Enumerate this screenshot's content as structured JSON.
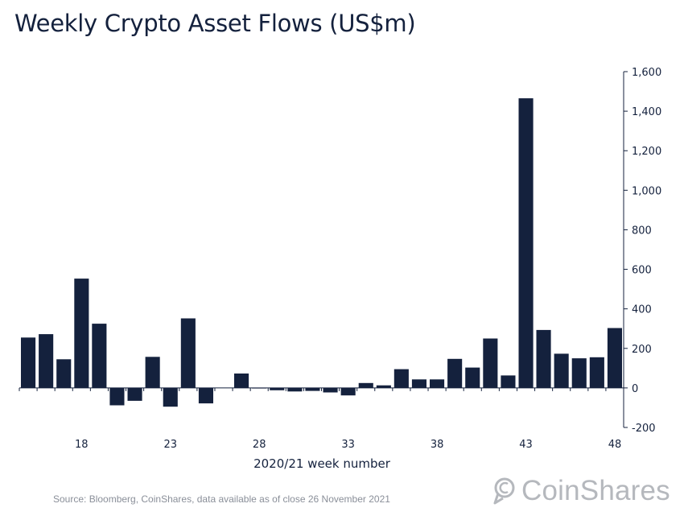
{
  "chart_data": {
    "type": "bar",
    "title": "Weekly Crypto Asset Flows (US$m)",
    "xlabel": "2020/21 week number",
    "ylabel": "",
    "ylim": [
      -200,
      1600
    ],
    "yticks": [
      -200,
      0,
      200,
      400,
      600,
      800,
      1000,
      1200,
      1400,
      1600
    ],
    "ytick_labels": [
      "-200",
      "0",
      "200",
      "400",
      "600",
      "800",
      "1,000",
      "1,200",
      "1,400",
      "1,600"
    ],
    "xticks": [
      18,
      23,
      28,
      33,
      38,
      43,
      48
    ],
    "x": [
      15,
      16,
      17,
      18,
      19,
      20,
      21,
      22,
      23,
      24,
      25,
      26,
      27,
      28,
      29,
      30,
      31,
      32,
      33,
      34,
      35,
      36,
      37,
      38,
      39,
      40,
      41,
      42,
      43,
      44,
      45,
      46,
      47,
      48
    ],
    "values": [
      255,
      272,
      145,
      553,
      325,
      -88,
      -65,
      157,
      -95,
      352,
      -78,
      0,
      73,
      -3,
      -12,
      -18,
      -15,
      -23,
      -38,
      25,
      13,
      95,
      43,
      43,
      147,
      103,
      250,
      63,
      1465,
      293,
      173,
      150,
      155,
      303
    ],
    "color": "#14213d"
  },
  "footer": {
    "source": "Source: Bloomberg, CoinShares, data available as of close 26 November 2021",
    "logo_text": "CoinShares"
  }
}
